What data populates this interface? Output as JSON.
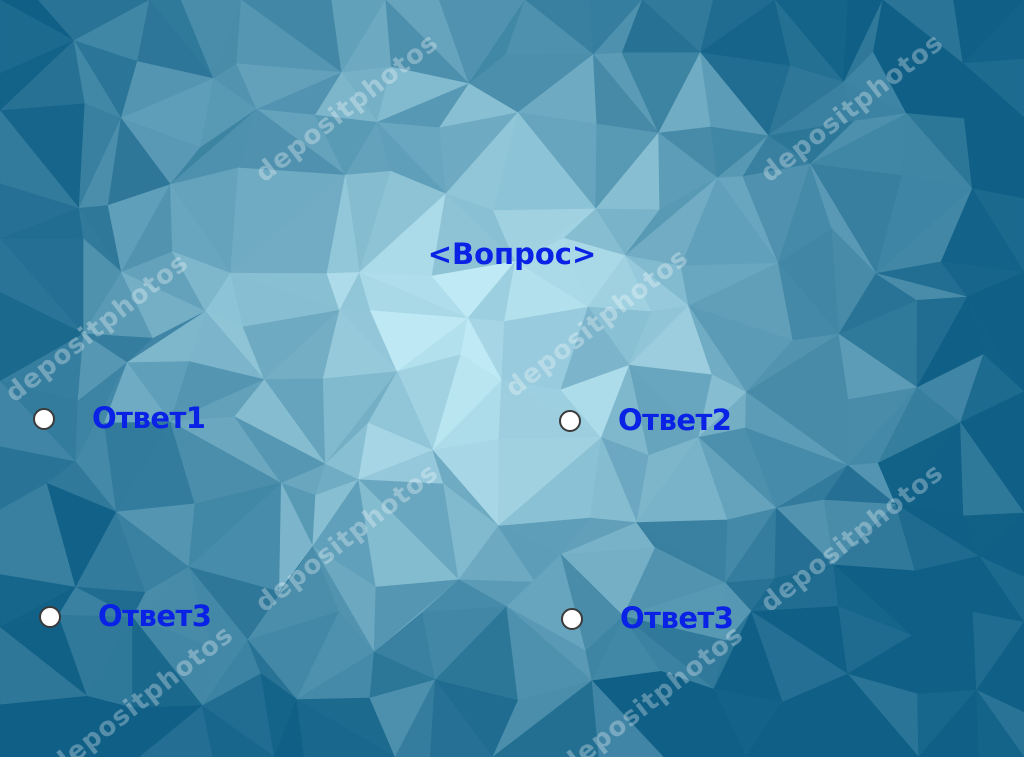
{
  "question": {
    "text": "<Вопрос>"
  },
  "answers": [
    {
      "label": "Ответ1"
    },
    {
      "label": "Ответ2"
    },
    {
      "label": "Ответ3"
    },
    {
      "label": "Ответ3"
    }
  ],
  "watermark": {
    "text": "depositphotos"
  },
  "colors": {
    "label_text": "#0a22e6",
    "radio_fill": "#ffffff",
    "background_light": "#bfeaf5",
    "background_dark": "#0f5f86"
  }
}
